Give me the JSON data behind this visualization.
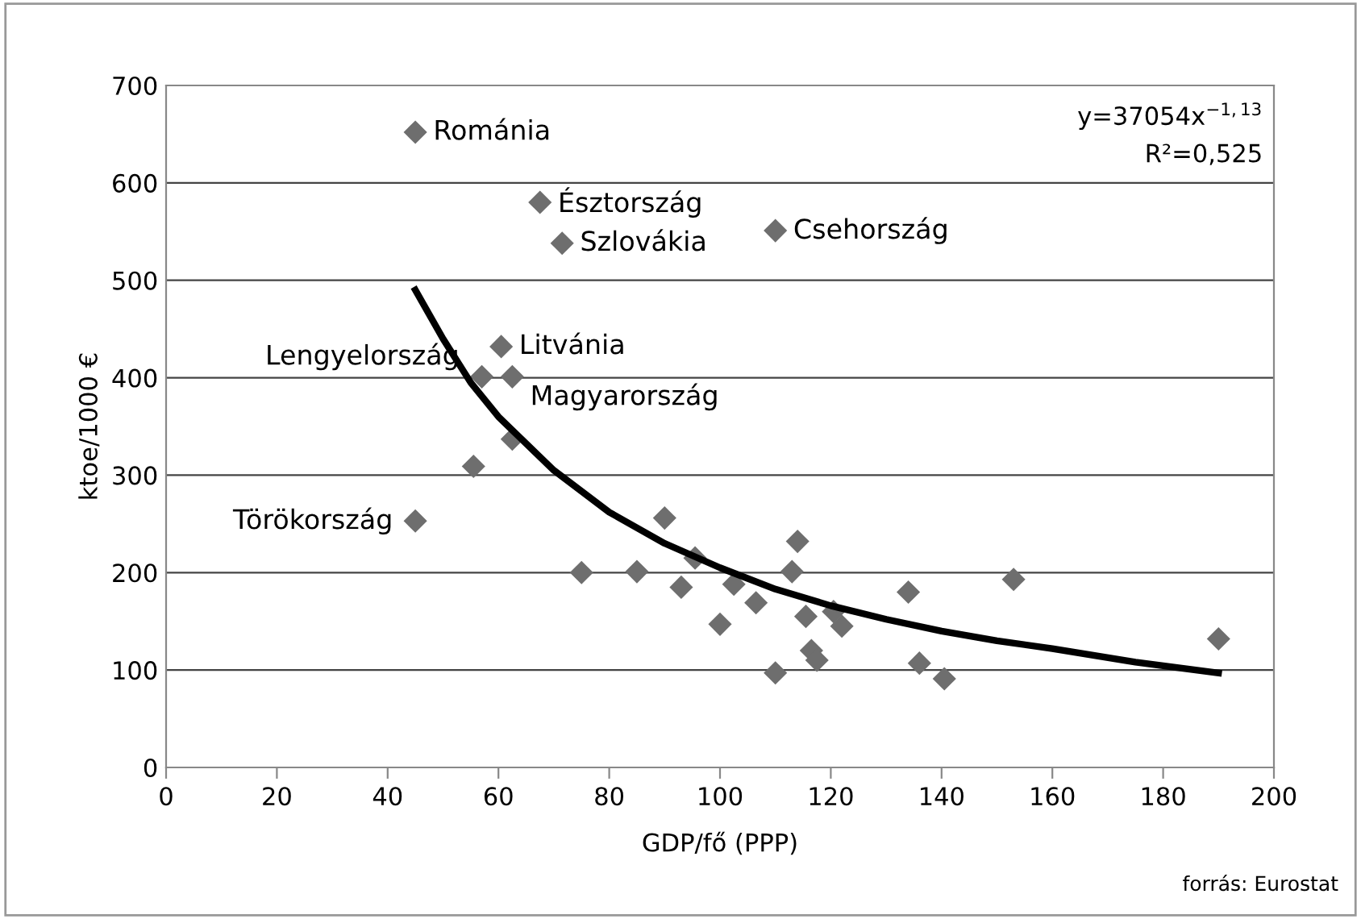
{
  "chart_data": {
    "type": "scatter",
    "xlabel": "GDP/fő (PPP)",
    "ylabel": "ktoe/1000 €",
    "xlim": [
      0,
      200
    ],
    "xticks": [
      0,
      20,
      40,
      60,
      80,
      100,
      120,
      140,
      160,
      180,
      200
    ],
    "ylim": [
      0,
      700
    ],
    "yticks": [
      0,
      100,
      200,
      300,
      400,
      500,
      600,
      700
    ],
    "grid": "y",
    "legend": false,
    "series": [
      {
        "marker": "diamond",
        "color": "#6e6e6e",
        "x": [
          45,
          67.5,
          71.5,
          110,
          60.5,
          57,
          62.5,
          62.5,
          55.5,
          45,
          75,
          85,
          90,
          93,
          95.5,
          100,
          102.5,
          106.5,
          110,
          113,
          114,
          115.5,
          116.5,
          117.5,
          120.5,
          122,
          134,
          136,
          140.5,
          153,
          190
        ],
        "values": [
          652,
          580,
          538,
          551,
          432,
          401,
          401,
          337,
          309,
          253,
          200,
          201,
          256,
          185,
          215,
          147,
          188,
          169,
          97,
          201,
          232,
          155,
          120,
          110,
          160,
          145,
          180,
          107,
          91,
          193,
          132
        ]
      },
      {
        "type": "line",
        "color": "#000000",
        "x": [
          45,
          50,
          55,
          60,
          70,
          80,
          90,
          100,
          110,
          120,
          130,
          140,
          150,
          160,
          175,
          190
        ],
        "values": [
          490,
          440,
          395,
          360,
          305,
          262,
          230,
          205,
          183,
          166,
          152,
          140,
          130,
          122,
          108,
          97
        ]
      }
    ],
    "annotations": [
      {
        "text": "Románia",
        "x": 45,
        "y": 652
      },
      {
        "text": "Észtország",
        "x": 67.5,
        "y": 580
      },
      {
        "text": "Szlovákia",
        "x": 71.5,
        "y": 538
      },
      {
        "text": "Csehország",
        "x": 110,
        "y": 551
      },
      {
        "text": "Litvánia",
        "x": 60.5,
        "y": 432
      },
      {
        "text": "Lengyelország",
        "x": 57,
        "y": 401
      },
      {
        "text": "Magyarország",
        "x": 62.5,
        "y": 401
      },
      {
        "text": "Törökország",
        "x": 45,
        "y": 253
      },
      "y=37054x$^{−1,13}$",
      "R²=0,525",
      "forrás: Eurostat"
    ]
  }
}
